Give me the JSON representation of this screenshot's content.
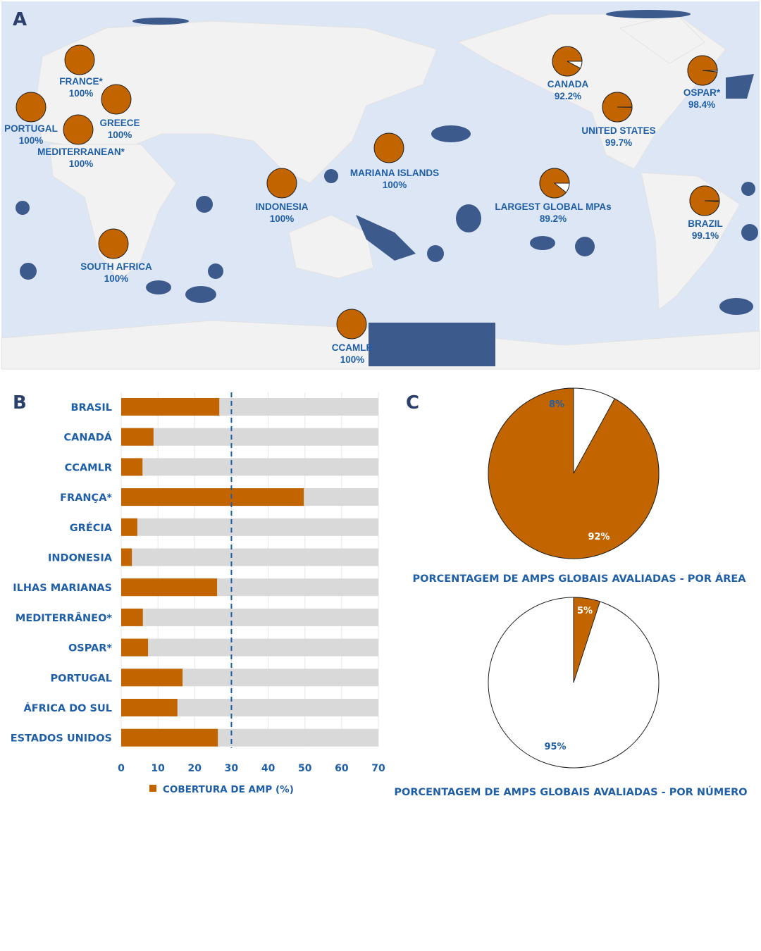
{
  "panel_labels": {
    "a": "A",
    "b": "B",
    "c": "C"
  },
  "colors": {
    "orange": "#c26400",
    "navy": "#1f5fa8",
    "mpa": "#3d5a8c",
    "ocean": "#dce6f5",
    "land": "#f2f2f2",
    "bar_bg": "#d9d9d9"
  },
  "chart_data": [
    {
      "type": "pie-map",
      "pies": [
        {
          "name": "FRANCE*",
          "label": "100%",
          "value": 100
        },
        {
          "name": "PORTUGAL",
          "label": "100%",
          "value": 100
        },
        {
          "name": "GREECE",
          "label": "100%",
          "value": 100
        },
        {
          "name": "MEDITERRANEAN*",
          "label": "100%",
          "value": 100
        },
        {
          "name": "SOUTH AFRICA",
          "label": "100%",
          "value": 100
        },
        {
          "name": "INDONESIA",
          "label": "100%",
          "value": 100
        },
        {
          "name": "MARIANA ISLANDS",
          "label": "100%",
          "value": 100
        },
        {
          "name": "CCAMLR",
          "label": "100%",
          "value": 100
        },
        {
          "name": "CANADA",
          "label": "92.2%",
          "value": 92.2
        },
        {
          "name": "UNITED STATES",
          "label": "99.7%",
          "value": 99.7
        },
        {
          "name": "OSPAR*",
          "label": "98.4%",
          "value": 98.4
        },
        {
          "name": "LARGEST GLOBAL MPAs",
          "label": "89.2%",
          "value": 89.2
        },
        {
          "name": "BRAZIL",
          "label": "99.1%",
          "value": 99.1
        }
      ]
    },
    {
      "type": "bar",
      "orientation": "horizontal",
      "categories": [
        "BRASIL",
        "CANADÁ",
        "CCAMLR",
        "FRANÇA*",
        "GRÉCIA",
        "INDONESIA",
        "ILHAS MARIANAS",
        "MEDITERRÂNEO*",
        "OSPAR*",
        "PORTUGAL",
        "ÁFRICA DO SUL",
        "ESTADOS UNIDOS"
      ],
      "values": [
        26.7,
        8.8,
        5.8,
        49.7,
        4.4,
        2.9,
        26.1,
        5.9,
        7.3,
        16.7,
        15.3,
        26.3
      ],
      "xlim": [
        0,
        70
      ],
      "xticks": [
        "0",
        "10",
        "20",
        "30",
        "40",
        "50",
        "60",
        "70"
      ],
      "reference_line": 30,
      "legend": "COBERTURA DE AMP (%)",
      "legend_position": "bottom",
      "grid": true
    },
    {
      "type": "pie",
      "title": "PORCENTAGEM DE AMPS GLOBAIS AVALIADAS - POR ÁREA",
      "values": [
        92,
        8
      ],
      "labels": [
        "92%",
        "8%"
      ]
    },
    {
      "type": "pie",
      "title": "PORCENTAGEM DE AMPS GLOBAIS AVALIADAS - POR NÚMERO",
      "values": [
        5,
        95
      ],
      "labels": [
        "5%",
        "95%"
      ]
    }
  ]
}
